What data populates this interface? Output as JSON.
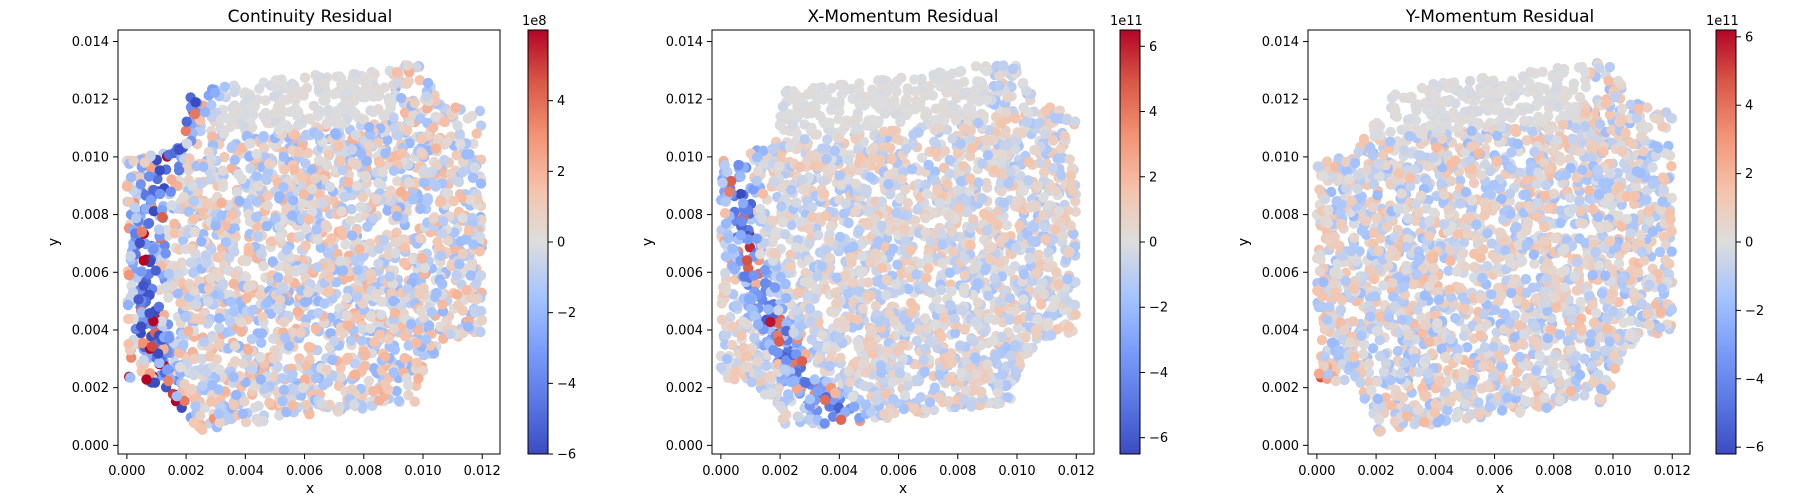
{
  "colors": {
    "cold": "#3b4cc0",
    "neutral": "#dddddd",
    "warm": "#b40426"
  },
  "chart_data": [
    {
      "type": "scatter",
      "title": "Continuity Residual",
      "xlabel": "x",
      "ylabel": "y",
      "xlim": [
        -0.0003,
        0.0126
      ],
      "ylim": [
        -0.0003,
        0.0144
      ],
      "xticks": [
        "0.000",
        "0.002",
        "0.004",
        "0.006",
        "0.008",
        "0.010",
        "0.012"
      ],
      "yticks": [
        "0.000",
        "0.002",
        "0.004",
        "0.006",
        "0.008",
        "0.010",
        "0.012",
        "0.014"
      ],
      "colorbar": {
        "exponent": "1e8",
        "range": [
          -6,
          6
        ],
        "ticks": [
          "−6",
          "−4",
          "−2",
          "0",
          "2",
          "4"
        ]
      },
      "colormap": "coolwarm",
      "bands": [
        {
          "x0": 0.0,
          "y0": 0.0025,
          "cx": 0.0125,
          "cy": 0.0125,
          "sign": 1,
          "amp": 0.9,
          "width": 0.0005
        },
        {
          "x0": 0.002,
          "y0": 0.0005,
          "cx": 0.0125,
          "cy": 0.006,
          "sign": -1,
          "amp": 0.8,
          "width": 0.0004
        }
      ],
      "noise": 0.35
    },
    {
      "type": "scatter",
      "title": "X-Momentum Residual",
      "xlabel": "x",
      "ylabel": "y",
      "xlim": [
        -0.0003,
        0.0126
      ],
      "ylim": [
        -0.0003,
        0.0144
      ],
      "xticks": [
        "0.000",
        "0.002",
        "0.004",
        "0.006",
        "0.008",
        "0.010",
        "0.012"
      ],
      "yticks": [
        "0.000",
        "0.002",
        "0.004",
        "0.006",
        "0.008",
        "0.010",
        "0.012",
        "0.014"
      ],
      "colorbar": {
        "exponent": "1e11",
        "range": [
          -6.5,
          6.5
        ],
        "ticks": [
          "−6",
          "−4",
          "−2",
          "0",
          "2",
          "4",
          "6"
        ]
      },
      "colormap": "coolwarm",
      "bands": [
        {
          "x0": 0.004,
          "y0": 0.001,
          "cx": 0.012,
          "cy": 0.009,
          "sign": -1,
          "amp": 0.7,
          "width": 0.0004
        }
      ],
      "noise": 0.25
    },
    {
      "type": "scatter",
      "title": "Y-Momentum Residual",
      "xlabel": "x",
      "ylabel": "y",
      "xlim": [
        -0.0003,
        0.0126
      ],
      "ylim": [
        -0.0003,
        0.0144
      ],
      "xticks": [
        "0.000",
        "0.002",
        "0.004",
        "0.006",
        "0.008",
        "0.010",
        "0.012"
      ],
      "yticks": [
        "0.000",
        "0.002",
        "0.004",
        "0.006",
        "0.008",
        "0.010",
        "0.012",
        "0.014"
      ],
      "colorbar": {
        "exponent": "1e11",
        "range": [
          -6.2,
          6.2
        ],
        "ticks": [
          "−6",
          "−4",
          "−2",
          "0",
          "2",
          "4",
          "6"
        ]
      },
      "colormap": "coolwarm",
      "bands": [
        {
          "x0": 0.0,
          "y0": 0.002,
          "cx": 0.012,
          "cy": 0.008,
          "sign": 1,
          "amp": 0.85,
          "width": 0.0004
        }
      ],
      "noise": 0.3
    }
  ]
}
